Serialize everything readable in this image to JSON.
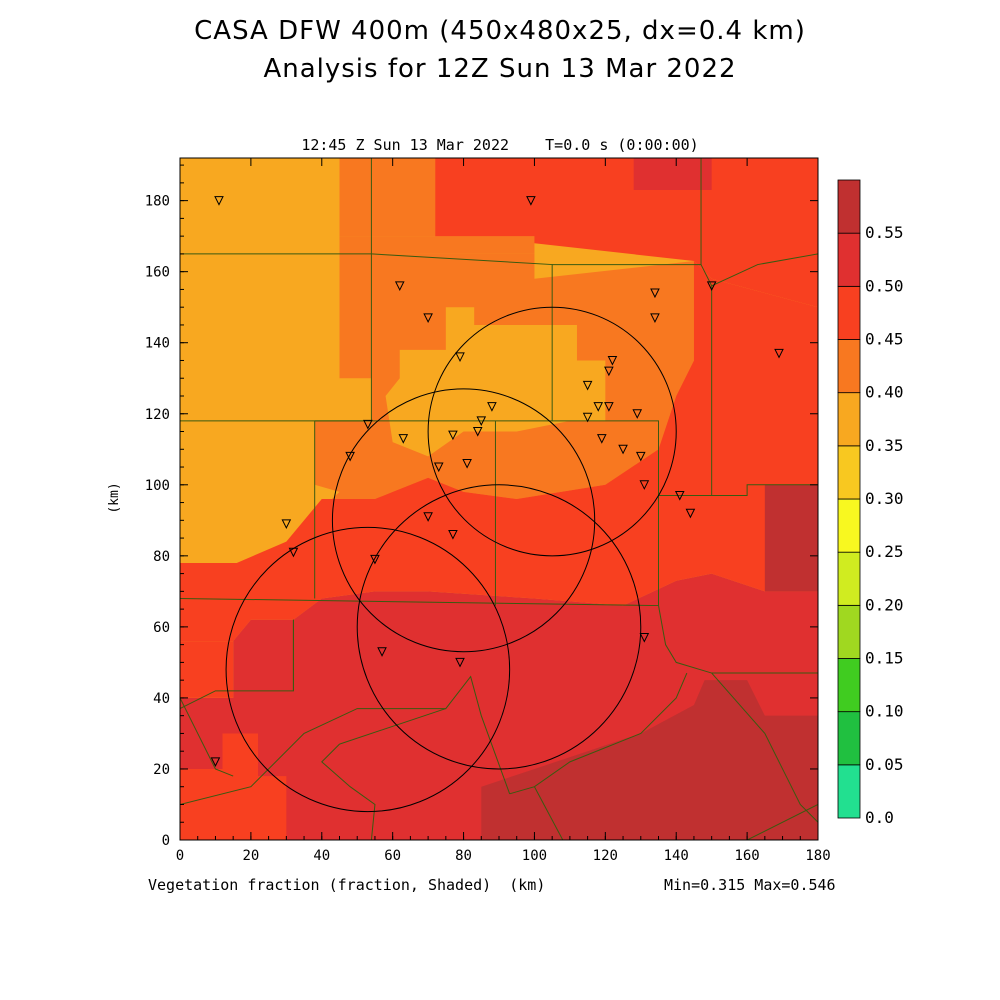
{
  "title": "CASA DFW 400m (450x480x25, dx=0.4 km)",
  "subtitle": "Analysis for 12Z Sun 13 Mar 2022",
  "timestamp": "12:45 Z Sun 13 Mar 2022",
  "time_offset": "T=0.0 s (0:00:00)",
  "field_label": "Vegetation fraction (fraction, Shaded)",
  "x_unit_label": "(km)",
  "y_unit_label": "(km)",
  "minmax": "Min=0.315 Max=0.546",
  "chart_data": {
    "type": "heatmap",
    "xlim": [
      0,
      180
    ],
    "ylim": [
      0,
      192
    ],
    "x_ticks": [
      "0",
      "20",
      "40",
      "60",
      "80",
      "100",
      "120",
      "140",
      "160",
      "180"
    ],
    "y_ticks": [
      "0",
      "20",
      "40",
      "60",
      "80",
      "100",
      "120",
      "140",
      "160",
      "180"
    ],
    "colorbar": {
      "levels": [
        "0.0",
        "0.05",
        "0.10",
        "0.15",
        "0.20",
        "0.25",
        "0.30",
        "0.35",
        "0.40",
        "0.45",
        "0.50",
        "0.55"
      ],
      "colors": [
        "#22e090",
        "#20c040",
        "#40cc20",
        "#a0d820",
        "#d0ec20",
        "#f8f820",
        "#f8c820",
        "#f8a820",
        "#f87820",
        "#f84020",
        "#e03030",
        "#c03030"
      ]
    },
    "regions": [
      {
        "color": "#f8a820",
        "poly": [
          [
            0,
            192
          ],
          [
            45,
            192
          ],
          [
            45,
            165
          ],
          [
            0,
            165
          ]
        ]
      },
      {
        "color": "#f87820",
        "poly": [
          [
            45,
            192
          ],
          [
            72,
            192
          ],
          [
            72,
            170
          ],
          [
            45,
            170
          ]
        ]
      },
      {
        "color": "#f84020",
        "poly": [
          [
            72,
            192
          ],
          [
            180,
            192
          ],
          [
            180,
            150
          ],
          [
            150,
            158
          ],
          [
            145,
            163
          ],
          [
            100,
            168
          ],
          [
            72,
            168
          ]
        ]
      },
      {
        "color": "#e03030",
        "poly": [
          [
            128,
            192
          ],
          [
            150,
            192
          ],
          [
            150,
            183
          ],
          [
            128,
            183
          ]
        ]
      },
      {
        "color": "#f8a820",
        "poly": [
          [
            0,
            165
          ],
          [
            54,
            165
          ],
          [
            54,
            118
          ],
          [
            0,
            118
          ]
        ]
      },
      {
        "color": "#f87820",
        "poly": [
          [
            45,
            170
          ],
          [
            100,
            170
          ],
          [
            100,
            165
          ],
          [
            54,
            165
          ],
          [
            54,
            130
          ],
          [
            45,
            130
          ]
        ]
      },
      {
        "color": "#f87820",
        "poly": [
          [
            54,
            165
          ],
          [
            100,
            165
          ],
          [
            100,
            158
          ],
          [
            145,
            163
          ],
          [
            145,
            135
          ],
          [
            140,
            125
          ],
          [
            135,
            110
          ],
          [
            120,
            100
          ],
          [
            95,
            96
          ],
          [
            80,
            98
          ],
          [
            70,
            102
          ],
          [
            60,
            98
          ],
          [
            55,
            96
          ],
          [
            40,
            96
          ],
          [
            30,
            92
          ],
          [
            0,
            92
          ],
          [
            0,
            118
          ],
          [
            54,
            118
          ]
        ]
      },
      {
        "color": "#f8a820",
        "poly": [
          [
            0,
            118
          ],
          [
            38,
            118
          ],
          [
            38,
            100
          ],
          [
            45,
            98
          ],
          [
            30,
            84
          ],
          [
            16,
            78
          ],
          [
            0,
            78
          ]
        ]
      },
      {
        "color": "#f8a820",
        "poly": [
          [
            62,
            138
          ],
          [
            75,
            138
          ],
          [
            75,
            150
          ],
          [
            83,
            150
          ],
          [
            83,
            145
          ],
          [
            100,
            145
          ],
          [
            112,
            145
          ],
          [
            112,
            135
          ],
          [
            120,
            135
          ],
          [
            120,
            118
          ],
          [
            110,
            118
          ],
          [
            95,
            115
          ],
          [
            80,
            115
          ],
          [
            70,
            108
          ],
          [
            60,
            112
          ],
          [
            58,
            125
          ],
          [
            62,
            130
          ]
        ]
      },
      {
        "color": "#f8a820",
        "poly": [
          [
            85,
            132
          ],
          [
            107,
            132
          ],
          [
            107,
            125
          ],
          [
            85,
            125
          ]
        ]
      },
      {
        "color": "#f84020",
        "poly": [
          [
            0,
            78
          ],
          [
            16,
            78
          ],
          [
            30,
            84
          ],
          [
            40,
            96
          ],
          [
            55,
            96
          ],
          [
            60,
            98
          ],
          [
            70,
            102
          ],
          [
            80,
            98
          ],
          [
            95,
            96
          ],
          [
            120,
            100
          ],
          [
            135,
            110
          ],
          [
            140,
            125
          ],
          [
            145,
            135
          ],
          [
            145,
            163
          ],
          [
            150,
            158
          ],
          [
            180,
            150
          ],
          [
            180,
            70
          ],
          [
            165,
            70
          ],
          [
            150,
            75
          ],
          [
            140,
            73
          ],
          [
            125,
            66
          ],
          [
            100,
            68
          ],
          [
            70,
            70
          ],
          [
            55,
            70
          ],
          [
            40,
            68
          ],
          [
            32,
            62
          ],
          [
            20,
            62
          ],
          [
            15,
            56
          ],
          [
            0,
            56
          ]
        ]
      },
      {
        "color": "#e03030",
        "poly": [
          [
            15,
            56
          ],
          [
            20,
            62
          ],
          [
            32,
            62
          ],
          [
            40,
            68
          ],
          [
            55,
            70
          ],
          [
            70,
            70
          ],
          [
            100,
            68
          ],
          [
            125,
            66
          ],
          [
            140,
            73
          ],
          [
            150,
            75
          ],
          [
            165,
            70
          ],
          [
            180,
            70
          ],
          [
            180,
            0
          ],
          [
            0,
            0
          ],
          [
            0,
            40
          ],
          [
            15,
            40
          ]
        ]
      },
      {
        "color": "#f84020",
        "poly": [
          [
            0,
            40
          ],
          [
            15,
            40
          ],
          [
            15,
            56
          ],
          [
            0,
            56
          ]
        ]
      },
      {
        "color": "#f84020",
        "poly": [
          [
            0,
            0
          ],
          [
            30,
            0
          ],
          [
            30,
            18
          ],
          [
            22,
            18
          ],
          [
            22,
            30
          ],
          [
            12,
            30
          ],
          [
            12,
            20
          ],
          [
            0,
            20
          ]
        ]
      },
      {
        "color": "#c03030",
        "poly": [
          [
            85,
            0
          ],
          [
            180,
            0
          ],
          [
            180,
            35
          ],
          [
            165,
            35
          ],
          [
            160,
            45
          ],
          [
            148,
            45
          ],
          [
            145,
            38
          ],
          [
            130,
            30
          ],
          [
            115,
            25
          ],
          [
            100,
            20
          ],
          [
            85,
            15
          ]
        ]
      },
      {
        "color": "#c03030",
        "poly": [
          [
            165,
            70
          ],
          [
            180,
            70
          ],
          [
            180,
            100
          ],
          [
            165,
            100
          ]
        ]
      }
    ],
    "stations": [
      [
        11,
        180
      ],
      [
        99,
        180
      ],
      [
        62,
        156
      ],
      [
        70,
        147
      ],
      [
        79,
        136
      ],
      [
        134,
        154
      ],
      [
        134,
        147
      ],
      [
        150,
        156
      ],
      [
        169,
        137
      ],
      [
        115,
        128
      ],
      [
        121,
        132
      ],
      [
        122,
        135
      ],
      [
        118,
        122
      ],
      [
        115,
        119
      ],
      [
        121,
        122
      ],
      [
        129,
        120
      ],
      [
        53,
        117
      ],
      [
        63,
        113
      ],
      [
        77,
        114
      ],
      [
        85,
        118
      ],
      [
        84,
        115
      ],
      [
        88,
        122
      ],
      [
        73,
        105
      ],
      [
        81,
        106
      ],
      [
        48,
        108
      ],
      [
        119,
        113
      ],
      [
        125,
        110
      ],
      [
        130,
        108
      ],
      [
        131,
        100
      ],
      [
        141,
        97
      ],
      [
        144,
        92
      ],
      [
        30,
        89
      ],
      [
        32,
        81
      ],
      [
        70,
        91
      ],
      [
        77,
        86
      ],
      [
        55,
        79
      ],
      [
        57,
        53
      ],
      [
        79,
        50
      ],
      [
        131,
        57
      ],
      [
        10,
        22
      ]
    ],
    "rings": [
      {
        "cx": 105,
        "cy": 115,
        "r": 35
      },
      {
        "cx": 80,
        "cy": 90,
        "r": 37
      },
      {
        "cx": 90,
        "cy": 60,
        "r": 40
      },
      {
        "cx": 53,
        "cy": 48,
        "r": 40
      }
    ],
    "boundaries": [
      [
        [
          0,
          165
        ],
        [
          54,
          165
        ],
        [
          54,
          192
        ]
      ],
      [
        [
          54,
          165
        ],
        [
          54,
          118
        ],
        [
          0,
          118
        ]
      ],
      [
        [
          38,
          118
        ],
        [
          38,
          68
        ]
      ],
      [
        [
          0,
          68
        ],
        [
          135,
          66
        ]
      ],
      [
        [
          38,
          118
        ],
        [
          135,
          118
        ],
        [
          135,
          66
        ]
      ],
      [
        [
          89,
          118
        ],
        [
          89,
          66
        ]
      ],
      [
        [
          54,
          165
        ],
        [
          105,
          162
        ],
        [
          105,
          118
        ]
      ],
      [
        [
          105,
          162
        ],
        [
          147,
          162
        ],
        [
          150,
          156
        ],
        [
          163,
          162
        ],
        [
          180,
          165
        ]
      ],
      [
        [
          147,
          162
        ],
        [
          147,
          192
        ]
      ],
      [
        [
          150,
          156
        ],
        [
          150,
          97
        ]
      ],
      [
        [
          135,
          97
        ],
        [
          160,
          97
        ],
        [
          160,
          100
        ],
        [
          180,
          100
        ]
      ],
      [
        [
          135,
          66
        ],
        [
          137,
          55
        ],
        [
          140,
          50
        ],
        [
          150,
          47
        ],
        [
          180,
          47
        ]
      ],
      [
        [
          143,
          47
        ],
        [
          140,
          40
        ],
        [
          130,
          30
        ],
        [
          110,
          22
        ],
        [
          100,
          15
        ],
        [
          93,
          13
        ]
      ],
      [
        [
          93,
          13
        ],
        [
          85,
          35
        ],
        [
          82,
          46
        ],
        [
          75,
          37
        ],
        [
          50,
          37
        ],
        [
          35,
          30
        ],
        [
          20,
          15
        ],
        [
          0,
          10
        ]
      ],
      [
        [
          32,
          62
        ],
        [
          32,
          42
        ],
        [
          10,
          42
        ],
        [
          0,
          37
        ]
      ],
      [
        [
          32,
          62
        ],
        [
          32,
          42
        ]
      ],
      [
        [
          75,
          37
        ],
        [
          45,
          27
        ]
      ],
      [
        [
          45,
          27
        ],
        [
          40,
          22
        ],
        [
          48,
          15
        ],
        [
          55,
          10
        ],
        [
          54,
          0
        ]
      ],
      [
        [
          100,
          15
        ],
        [
          108,
          0
        ]
      ],
      [
        [
          150,
          47
        ],
        [
          165,
          30
        ],
        [
          170,
          20
        ],
        [
          175,
          10
        ],
        [
          180,
          5
        ]
      ],
      [
        [
          160,
          0
        ],
        [
          180,
          10
        ]
      ],
      [
        [
          0,
          40
        ],
        [
          5,
          30
        ],
        [
          10,
          20
        ],
        [
          15,
          18
        ]
      ]
    ]
  }
}
